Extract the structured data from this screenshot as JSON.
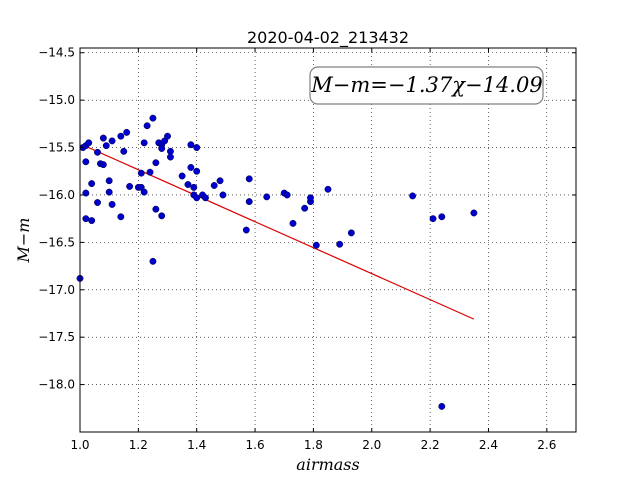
{
  "chart_data": {
    "type": "scatter",
    "title": "2020-04-02_213432",
    "xlabel": "airmass",
    "ylabel": "M−m",
    "xlim": [
      1.0,
      2.7
    ],
    "ylim": [
      -18.5,
      -14.45
    ],
    "y_inverted": false,
    "x_ticks": [
      1.0,
      1.2,
      1.4,
      1.6,
      1.8,
      2.0,
      2.2,
      2.4,
      2.6
    ],
    "x_tick_labels": [
      "1.0",
      "1.2",
      "1.4",
      "1.6",
      "1.8",
      "2.0",
      "2.2",
      "2.4",
      "2.6"
    ],
    "y_ticks": [
      -18.0,
      -17.5,
      -17.0,
      -16.5,
      -16.0,
      -15.5,
      -15.0,
      -14.5
    ],
    "y_tick_labels": [
      "−18.0",
      "−17.5",
      "−17.0",
      "−16.5",
      "−16.0",
      "−15.5",
      "−15.0",
      "−14.5"
    ],
    "grid": true,
    "annotation": "M−m=−1.37χ−14.09",
    "point_color": "#0000cc",
    "fit_color": "#dd0000",
    "fit_line": {
      "slope": -1.37,
      "intercept": -14.09,
      "x_range": [
        1.01,
        2.35
      ]
    },
    "points": [
      [
        1.0,
        -16.88
      ],
      [
        1.01,
        -15.5
      ],
      [
        1.02,
        -15.65
      ],
      [
        1.02,
        -15.48
      ],
      [
        1.02,
        -15.98
      ],
      [
        1.03,
        -15.45
      ],
      [
        1.02,
        -16.25
      ],
      [
        1.04,
        -16.27
      ],
      [
        1.04,
        -15.88
      ],
      [
        1.06,
        -15.55
      ],
      [
        1.06,
        -16.08
      ],
      [
        1.07,
        -15.67
      ],
      [
        1.08,
        -15.68
      ],
      [
        1.08,
        -15.4
      ],
      [
        1.09,
        -15.48
      ],
      [
        1.1,
        -15.85
      ],
      [
        1.1,
        -15.97
      ],
      [
        1.11,
        -15.43
      ],
      [
        1.11,
        -16.1
      ],
      [
        1.14,
        -15.38
      ],
      [
        1.14,
        -16.23
      ],
      [
        1.15,
        -15.54
      ],
      [
        1.16,
        -15.34
      ],
      [
        1.17,
        -15.91
      ],
      [
        1.2,
        -15.92
      ],
      [
        1.21,
        -15.92
      ],
      [
        1.21,
        -15.77
      ],
      [
        1.22,
        -15.45
      ],
      [
        1.22,
        -15.97
      ],
      [
        1.23,
        -15.27
      ],
      [
        1.24,
        -15.76
      ],
      [
        1.25,
        -16.7
      ],
      [
        1.25,
        -15.19
      ],
      [
        1.26,
        -15.66
      ],
      [
        1.26,
        -16.15
      ],
      [
        1.27,
        -15.45
      ],
      [
        1.28,
        -15.47
      ],
      [
        1.28,
        -15.51
      ],
      [
        1.28,
        -16.22
      ],
      [
        1.29,
        -15.43
      ],
      [
        1.3,
        -15.38
      ],
      [
        1.31,
        -15.54
      ],
      [
        1.31,
        -15.6
      ],
      [
        1.35,
        -15.8
      ],
      [
        1.37,
        -15.89
      ],
      [
        1.38,
        -15.71
      ],
      [
        1.38,
        -15.47
      ],
      [
        1.39,
        -15.92
      ],
      [
        1.39,
        -16.0
      ],
      [
        1.4,
        -15.5
      ],
      [
        1.4,
        -15.75
      ],
      [
        1.4,
        -16.03
      ],
      [
        1.42,
        -16.0
      ],
      [
        1.43,
        -16.03
      ],
      [
        1.46,
        -15.9
      ],
      [
        1.48,
        -15.85
      ],
      [
        1.49,
        -16.0
      ],
      [
        1.57,
        -16.37
      ],
      [
        1.58,
        -15.83
      ],
      [
        1.58,
        -16.07
      ],
      [
        1.64,
        -16.02
      ],
      [
        1.7,
        -15.98
      ],
      [
        1.71,
        -16.0
      ],
      [
        1.73,
        -16.3
      ],
      [
        1.77,
        -16.14
      ],
      [
        1.79,
        -16.07
      ],
      [
        1.79,
        -16.03
      ],
      [
        1.81,
        -16.53
      ],
      [
        1.85,
        -15.94
      ],
      [
        1.89,
        -16.52
      ],
      [
        1.93,
        -16.4
      ],
      [
        2.14,
        -16.01
      ],
      [
        2.21,
        -16.25
      ],
      [
        2.24,
        -16.23
      ],
      [
        2.24,
        -18.23
      ],
      [
        2.35,
        -16.19
      ]
    ]
  }
}
